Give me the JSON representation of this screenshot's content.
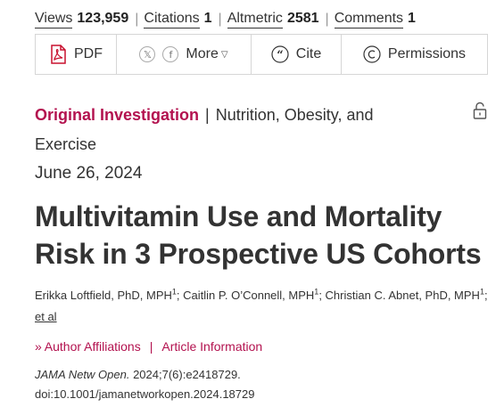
{
  "metrics": [
    {
      "label": "Views",
      "value": "123,959"
    },
    {
      "label": "Citations",
      "value": "1"
    },
    {
      "label": "Altmetric",
      "value": "2581"
    },
    {
      "label": "Comments",
      "value": "1"
    }
  ],
  "toolbar": {
    "pdf_label": "PDF",
    "x_glyph": "𝕏",
    "facebook_glyph": "f",
    "more_label": "More",
    "more_arrow": "▽",
    "cite_label": "Cite",
    "permissions_label": "Permissions"
  },
  "article": {
    "type": "Original Investigation",
    "separator": "|",
    "topic": "Nutrition, Obesity, and Exercise",
    "date": "June 26, 2024",
    "title": "Multivitamin Use and Mortality Risk in 3 Prospective US Cohorts"
  },
  "authors": {
    "a1": "Erikka Loftfield, PhD, MPH",
    "a1_sup": "1",
    "a2": "Caitlin P. O’Connell, MPH",
    "a2_sup": "1",
    "a3": "Christian C. Abnet, PhD, MPH",
    "a3_sup": "1",
    "et_al": "et al"
  },
  "links": {
    "chevron": "»",
    "affiliations": "Author Affiliations",
    "separator": "|",
    "article_info": "Article Information"
  },
  "citation": {
    "journal": "JAMA Netw Open.",
    "ref": "2024;7(6):e2418729.",
    "doi": "doi:10.1001/jamanetworkopen.2024.18729"
  },
  "colors": {
    "accent": "#b3124f",
    "pdf_red": "#c8102e"
  }
}
